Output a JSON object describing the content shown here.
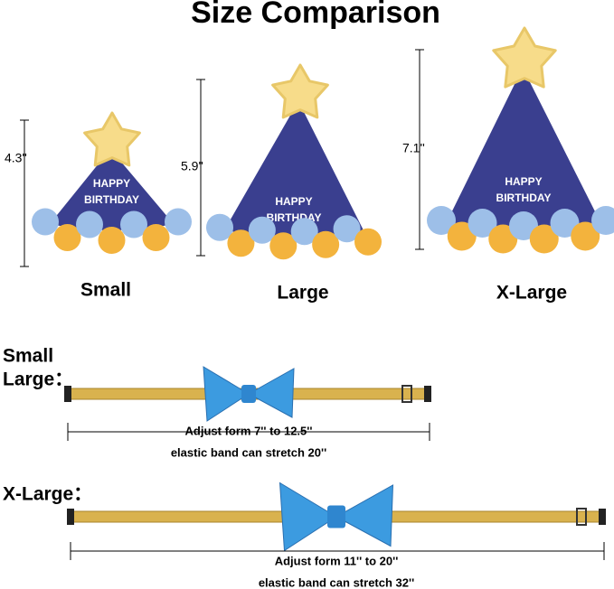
{
  "title": "Size Comparison",
  "hats": [
    {
      "height": "4.3''",
      "label": "Small",
      "print": [
        "HAPPY",
        "BIRTHDAY"
      ]
    },
    {
      "height": "5.9''",
      "label": "Large",
      "print": [
        "HAPPY",
        "BIRTHDAY"
      ]
    },
    {
      "height": "7.1''",
      "label": "X-Large",
      "print": [
        "HAPPY",
        "BIRTHDAY"
      ]
    }
  ],
  "collars": [
    {
      "label": [
        "Small",
        "Large："
      ],
      "adjust": "Adjust form 7'' to 12.5''",
      "stretch": "elastic band can stretch 20''"
    },
    {
      "label": [
        "X-Large："
      ],
      "adjust": "Adjust form 11'' to 20''",
      "stretch": "elastic band can stretch 32''"
    }
  ]
}
